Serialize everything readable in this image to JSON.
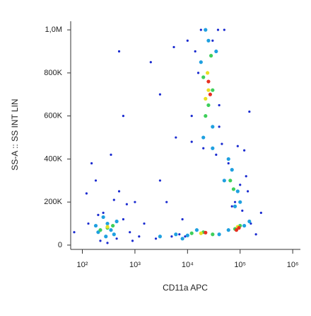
{
  "chart_data": {
    "type": "scatter",
    "xlabel": "CD11a APC",
    "ylabel": "SS-A :: SS INT LIN",
    "xscale": "log",
    "xlim": [
      60,
      1400000
    ],
    "ylim": [
      -20000,
      1040000
    ],
    "xticks": [
      {
        "value": 100,
        "label": "10²"
      },
      {
        "value": 1000,
        "label": "10³"
      },
      {
        "value": 10000,
        "label": "10⁴"
      },
      {
        "value": 100000,
        "label": "10⁵"
      },
      {
        "value": 1000000,
        "label": "10⁶"
      }
    ],
    "yticks": [
      0,
      {
        "value": 200000,
        "label": "200K"
      },
      {
        "value": 400000,
        "label": "400K"
      },
      {
        "value": 600000,
        "label": "600K"
      },
      {
        "value": 800000,
        "label": "800K"
      },
      {
        "value": 1000000,
        "label": "1,0M"
      }
    ],
    "grid": false,
    "series": [
      {
        "color": "#1a2bd0",
        "x": [
          70,
          120,
          180,
          250,
          400,
          600,
          900,
          150,
          220,
          500,
          800,
          1500,
          3000,
          6000,
          2000,
          4000,
          10000,
          8000,
          12000,
          18000,
          50000,
          150000,
          200000,
          35000,
          12000,
          14000,
          40000,
          45000,
          60000,
          120000,
          140000,
          70000,
          110000,
          130000,
          90000,
          300,
          450,
          700,
          200,
          1200,
          2500,
          5000,
          9000,
          160000,
          600,
          350,
          5500,
          3000,
          80000,
          100000,
          16000,
          40000,
          38000,
          20000,
          30000,
          500,
          130,
          1000,
          250000,
          7000
        ],
        "y": [
          60000,
          240000,
          300000,
          150000,
          210000,
          120000,
          20000,
          380000,
          20000,
          250000,
          60000,
          100000,
          700000,
          500000,
          850000,
          200000,
          950000,
          120000,
          480000,
          1000000,
          1000000,
          620000,
          50000,
          420000,
          600000,
          900000,
          550000,
          470000,
          380000,
          440000,
          250000,
          180000,
          160000,
          320000,
          460000,
          10000,
          30000,
          190000,
          140000,
          40000,
          30000,
          40000,
          40000,
          100000,
          600000,
          420000,
          920000,
          300000,
          200000,
          280000,
          800000,
          650000,
          1000000,
          450000,
          950000,
          900000,
          100000,
          200000,
          150000,
          50000
        ]
      },
      {
        "color": "#1fa0e0",
        "x": [
          200,
          300,
          400,
          250,
          350,
          180,
          450,
          280,
          3000,
          6000,
          10000,
          15000,
          40000,
          60000,
          120000,
          150000,
          8000,
          20000,
          30000,
          18000,
          35000,
          22000,
          30000,
          25000,
          50000,
          70000,
          90000,
          60000,
          100000,
          80000
        ],
        "y": [
          60000,
          100000,
          50000,
          130000,
          70000,
          90000,
          110000,
          40000,
          40000,
          50000,
          45000,
          70000,
          50000,
          70000,
          90000,
          110000,
          30000,
          500000,
          550000,
          850000,
          900000,
          1000000,
          450000,
          950000,
          300000,
          350000,
          250000,
          400000,
          200000,
          180000
        ]
      },
      {
        "color": "#3ecf5a",
        "x": [
          300,
          220,
          380,
          20000,
          30000,
          80000,
          100000,
          12000,
          25000,
          20000,
          28000,
          22000,
          30000,
          65000,
          75000
        ],
        "y": [
          80000,
          70000,
          90000,
          60000,
          50000,
          75000,
          90000,
          55000,
          650000,
          780000,
          880000,
          600000,
          720000,
          300000,
          260000
        ]
      },
      {
        "color": "#e8e020",
        "x": [
          300,
          25000,
          24000,
          22000,
          18000,
          90000
        ],
        "y": [
          85000,
          720000,
          800000,
          680000,
          55000,
          85000
        ]
      },
      {
        "color": "#e83020",
        "x": [
          25000,
          27000,
          22000,
          95000,
          85000
        ],
        "y": [
          760000,
          700000,
          58000,
          80000,
          70000
        ]
      }
    ]
  }
}
